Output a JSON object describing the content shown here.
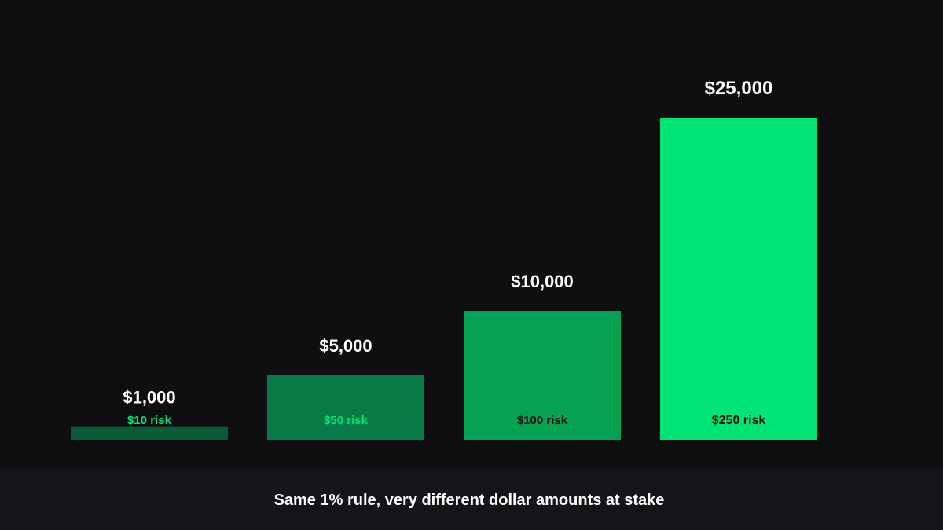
{
  "caption": "Same 1% rule, very different dollar amounts at stake",
  "colors": {
    "background": "#0f0f12",
    "footer": "#151519",
    "baseline": "#2a2a2e",
    "value_label": "#ffffff"
  },
  "chart_data": {
    "type": "bar",
    "title": "",
    "xlabel": "",
    "ylabel": "",
    "ylim": [
      0,
      25000
    ],
    "grid": false,
    "categories": [
      "$1,000",
      "$5,000",
      "$10,000",
      "$25,000"
    ],
    "values": [
      1000,
      5000,
      10000,
      25000
    ],
    "value_labels": [
      "$1,000",
      "$5,000",
      "$10,000",
      "$25,000"
    ],
    "risk_labels": [
      "$10 risk",
      "$50 risk",
      "$100 risk",
      "$250 risk"
    ],
    "risk_values": [
      10,
      50,
      100,
      250
    ],
    "bar_colors": [
      "#0b5a37",
      "#077a45",
      "#07a152",
      "#00e676"
    ],
    "risk_label_colors": [
      "#00e676",
      "#00e676",
      "#111111",
      "#111111"
    ]
  }
}
